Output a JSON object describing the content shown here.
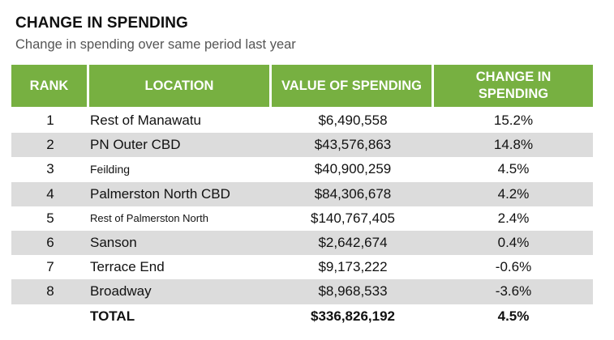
{
  "header": {
    "title": "CHANGE IN SPENDING",
    "subtitle": "Change in spending over same period last year"
  },
  "table": {
    "columns": {
      "rank": "RANK",
      "location": "LOCATION",
      "value": "VALUE OF SPENDING",
      "change_line1": "CHANGE IN",
      "change_line2": "SPENDING"
    },
    "rows": [
      {
        "rank": "1",
        "location": "Rest of Manawatu",
        "value": "$6,490,558",
        "change": "15.2%"
      },
      {
        "rank": "2",
        "location": "PN Outer CBD",
        "value": "$43,576,863",
        "change": "14.8%"
      },
      {
        "rank": "3",
        "location": "Feilding",
        "value": "$40,900,259",
        "change": "4.5%"
      },
      {
        "rank": "4",
        "location": "Palmerston North CBD",
        "value": "$84,306,678",
        "change": "4.2%"
      },
      {
        "rank": "5",
        "location": "Rest of Palmerston North",
        "value": "$140,767,405",
        "change": "2.4%"
      },
      {
        "rank": "6",
        "location": "Sanson",
        "value": "$2,642,674",
        "change": "0.4%"
      },
      {
        "rank": "7",
        "location": "Terrace End",
        "value": "$9,173,222",
        "change": "-0.6%"
      },
      {
        "rank": "8",
        "location": "Broadway",
        "value": "$8,968,533",
        "change": "-3.6%"
      }
    ],
    "total": {
      "label": "TOTAL",
      "value": "$336,826,192",
      "change": "4.5%"
    }
  },
  "colors": {
    "header_green": "#77b041",
    "row_shade": "#dcdcdc"
  }
}
